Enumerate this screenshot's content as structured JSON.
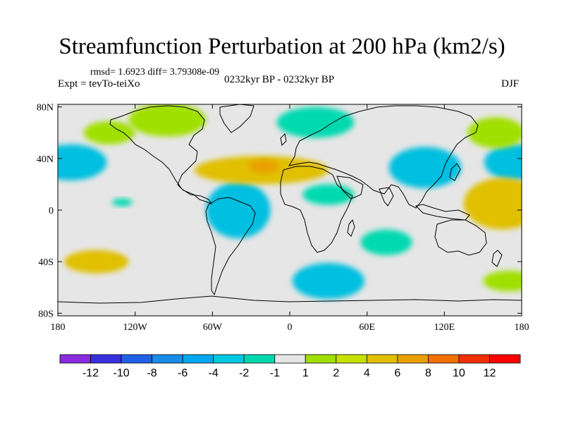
{
  "title": "Streamfunction Perturbation at 200 hPa (km2/s)",
  "stats": "rmsd= 1.6923 diff= 3.79308e-09",
  "experiment": "Expt = tevTo-teiXo",
  "period": "0232kyr BP - 0232kyr BP",
  "season": "DJF",
  "map": {
    "lon_ticks": [
      {
        "lon": -180,
        "label": "180"
      },
      {
        "lon": -120,
        "label": "120W"
      },
      {
        "lon": -60,
        "label": "60W"
      },
      {
        "lon": 0,
        "label": "0"
      },
      {
        "lon": 60,
        "label": "60E"
      },
      {
        "lon": 120,
        "label": "120E"
      },
      {
        "lon": 180,
        "label": "180"
      }
    ],
    "lat_ticks": [
      {
        "lat": 80,
        "label": "80N"
      },
      {
        "lat": 40,
        "label": "40N"
      },
      {
        "lat": 0,
        "label": "0"
      },
      {
        "lat": -40,
        "label": "40S"
      },
      {
        "lat": -80,
        "label": "80S"
      }
    ],
    "background_color": "#e6e6e6",
    "anomalies": [
      {
        "lon": -170,
        "lat": 37,
        "rx": 28,
        "ry": 14,
        "level": -3,
        "color": "#00bfe0"
      },
      {
        "lon": 175,
        "lat": 37,
        "rx": 24,
        "ry": 14,
        "level": -3,
        "color": "#00bfe0"
      },
      {
        "lon": -40,
        "lat": 0,
        "rx": 25,
        "ry": 22,
        "level": -3,
        "color": "#00bfe0"
      },
      {
        "lon": 105,
        "lat": 33,
        "rx": 28,
        "ry": 16,
        "level": -3,
        "color": "#00bfe0"
      },
      {
        "lon": 30,
        "lat": 12,
        "rx": 20,
        "ry": 8,
        "level": -2,
        "color": "#00d9b0"
      },
      {
        "lon": 30,
        "lat": -55,
        "rx": 28,
        "ry": 14,
        "level": -3,
        "color": "#00bfe0"
      },
      {
        "lon": 75,
        "lat": -25,
        "rx": 20,
        "ry": 10,
        "level": -2,
        "color": "#00d9b0"
      },
      {
        "lon": -22,
        "lat": 31,
        "rx": 52,
        "ry": 11,
        "level": 4,
        "color": "#e0c000"
      },
      {
        "lon": -20,
        "lat": 34,
        "rx": 12,
        "ry": 5,
        "level": 6,
        "color": "#e8a000"
      },
      {
        "lon": 165,
        "lat": 5,
        "rx": 30,
        "ry": 20,
        "level": 4,
        "color": "#e0c000"
      },
      {
        "lon": 160,
        "lat": 60,
        "rx": 22,
        "ry": 12,
        "level": 2,
        "color": "#a0e000"
      },
      {
        "lon": -150,
        "lat": -40,
        "rx": 25,
        "ry": 9,
        "level": 4,
        "color": "#e0c000"
      },
      {
        "lon": -140,
        "lat": 60,
        "rx": 20,
        "ry": 9,
        "level": 2,
        "color": "#a0e000"
      },
      {
        "lon": 170,
        "lat": -55,
        "rx": 20,
        "ry": 8,
        "level": 2,
        "color": "#a0e000"
      },
      {
        "lon": -130,
        "lat": 6,
        "rx": 8,
        "ry": 3,
        "level": -2,
        "color": "#00d9b0"
      },
      {
        "lon": -95,
        "lat": 70,
        "rx": 30,
        "ry": 13,
        "level": 2,
        "color": "#a0e000"
      },
      {
        "lon": 20,
        "lat": 68,
        "rx": 30,
        "ry": 12,
        "level": -2,
        "color": "#00d9b0"
      }
    ]
  },
  "colorbar": {
    "levels": [
      -12,
      -10,
      -8,
      -6,
      -4,
      -2,
      -1,
      1,
      2,
      4,
      6,
      8,
      10,
      12
    ],
    "labels": [
      "-12",
      "-10",
      "-8",
      "-6",
      "-4",
      "-2",
      "-1",
      "1",
      "2",
      "4",
      "6",
      "8",
      "10",
      "12"
    ],
    "colors": [
      "#8a2be2",
      "#3a30e0",
      "#2060e8",
      "#1a8be8",
      "#00a8f0",
      "#00c8e0",
      "#00d9b0",
      "#e6e6e6",
      "#a0e000",
      "#c8e000",
      "#e0c000",
      "#e8a000",
      "#f07000",
      "#f03000",
      "#ff0000"
    ]
  }
}
